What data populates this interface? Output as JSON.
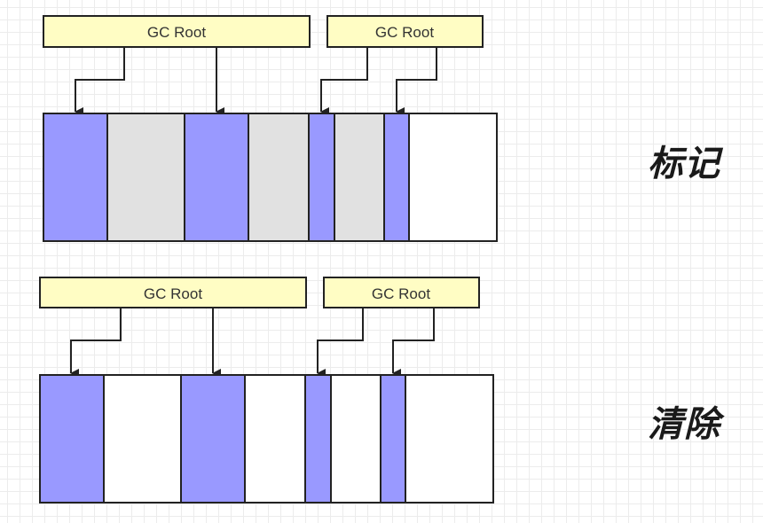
{
  "colors": {
    "live": "#9999ff",
    "garbage": "#e1e1e1",
    "free": "#ffffff",
    "root_fill": "#fffdc4",
    "stroke": "#222222"
  },
  "diagrams": [
    {
      "phase_label": "标记",
      "roots": [
        {
          "label": "GC Root",
          "icon": "box"
        },
        {
          "label": "GC Root",
          "icon": "box"
        }
      ],
      "blocks": [
        "live",
        "garbage",
        "live",
        "garbage",
        "live",
        "garbage",
        "live",
        "free"
      ]
    },
    {
      "phase_label": "清除",
      "roots": [
        {
          "label": "GC Root",
          "icon": "box"
        },
        {
          "label": "GC Root",
          "icon": "box"
        }
      ],
      "blocks": [
        "live",
        "free",
        "live",
        "free",
        "live",
        "free",
        "live",
        "free"
      ]
    }
  ]
}
